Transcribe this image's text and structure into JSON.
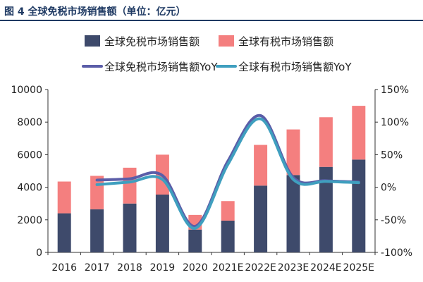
{
  "title": "图 4 全球免税市场销售额（单位：亿元）",
  "colors": {
    "dutyfree_bar": "#3e4a6b",
    "taxed_bar": "#f47f7f",
    "dutyfree_yoy": "#5b5da8",
    "taxed_yoy": "#3f9fbf",
    "title": "#1f3a63"
  },
  "chart_data": {
    "type": "bar",
    "stacked": true,
    "categories": [
      "2016",
      "2017",
      "2018",
      "2019",
      "2020",
      "2021E",
      "2022E",
      "2023E",
      "2024E",
      "2025E"
    ],
    "series": [
      {
        "name": "全球免税市场销售额",
        "type": "bar",
        "axis": "left",
        "values": [
          2400,
          2650,
          3000,
          3550,
          1400,
          1950,
          4100,
          4750,
          5250,
          5700
        ]
      },
      {
        "name": "全球有税市场销售额",
        "type": "bar",
        "axis": "left",
        "values": [
          1950,
          2050,
          2200,
          2450,
          900,
          1200,
          2500,
          2800,
          3050,
          3300
        ]
      },
      {
        "name": "全球免税市场销售额YoY",
        "type": "line",
        "axis": "right",
        "unit": "%",
        "values": [
          null,
          11,
          13,
          18,
          -60,
          40,
          110,
          15,
          10,
          8
        ]
      },
      {
        "name": "全球有税市场销售额YoY",
        "type": "line",
        "axis": "right",
        "unit": "%",
        "values": [
          null,
          4,
          8,
          12,
          -63,
          35,
          105,
          12,
          9,
          7
        ]
      }
    ],
    "left_axis": {
      "min": 0,
      "max": 10000,
      "ticks": [
        0,
        2000,
        4000,
        6000,
        8000,
        10000
      ]
    },
    "right_axis": {
      "min": -100,
      "max": 150,
      "ticks": [
        "-100%",
        "-50%",
        "0%",
        "50%",
        "100%",
        "150%"
      ],
      "tick_values": [
        -100,
        -50,
        0,
        50,
        100,
        150
      ]
    },
    "legend": "top",
    "grid": false
  }
}
